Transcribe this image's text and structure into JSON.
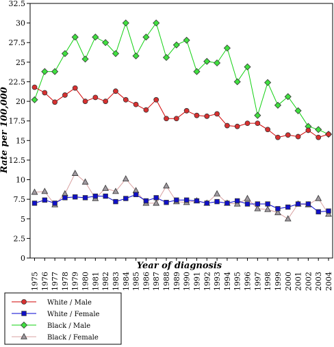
{
  "chart_data": {
    "type": "line",
    "xlabel": "Year of diagnosis",
    "ylabel": "Rate per 100,000",
    "ylim": [
      0,
      32.5
    ],
    "yticks": [
      "0",
      "2.5",
      "5",
      "7.5",
      "10",
      "12.5",
      "15",
      "17.5",
      "20",
      "22.5",
      "25",
      "27.5",
      "30",
      "32.5"
    ],
    "categories": [
      "1975",
      "1976",
      "1977",
      "1978",
      "1979",
      "1980",
      "1981",
      "1982",
      "1983",
      "1984",
      "1985",
      "1986",
      "1987",
      "1988",
      "1989",
      "1990",
      "1991",
      "1992",
      "1993",
      "1994",
      "1995",
      "1996",
      "1997",
      "1998",
      "1999",
      "2000",
      "2001",
      "2002",
      "2003",
      "2004"
    ],
    "legend_position": "bottom-left",
    "grid": false,
    "series": [
      {
        "name": "White / Male",
        "color": "#d00000",
        "fill": "#d83030",
        "marker": "circle",
        "values": [
          21.8,
          21.1,
          19.9,
          20.8,
          21.7,
          20.0,
          20.5,
          20.0,
          21.3,
          20.2,
          19.6,
          18.9,
          20.2,
          17.8,
          17.8,
          18.8,
          18.2,
          18.1,
          18.4,
          16.9,
          16.8,
          17.2,
          17.2,
          16.4,
          15.4,
          15.7,
          15.5,
          16.3,
          15.4,
          15.8
        ]
      },
      {
        "name": "White / Female",
        "color": "#0000d0",
        "fill": "#1010c8",
        "marker": "square",
        "values": [
          7.0,
          7.4,
          7.0,
          7.7,
          7.8,
          7.7,
          7.9,
          7.9,
          7.2,
          7.6,
          8.1,
          7.3,
          7.7,
          7.1,
          7.4,
          7.4,
          7.3,
          7.0,
          7.2,
          7.0,
          7.3,
          6.9,
          6.9,
          6.9,
          6.3,
          6.5,
          6.9,
          6.9,
          5.9,
          6.0
        ]
      },
      {
        "name": "Black / Male",
        "color": "#10d010",
        "fill": "#40e040",
        "marker": "diamond",
        "values": [
          20.2,
          23.8,
          23.8,
          26.1,
          28.2,
          25.4,
          28.2,
          27.5,
          26.1,
          30.0,
          25.8,
          28.2,
          30.0,
          25.6,
          27.2,
          27.8,
          23.8,
          25.1,
          24.9,
          26.8,
          22.5,
          24.4,
          18.2,
          22.4,
          19.5,
          20.6,
          18.8,
          16.8,
          16.4,
          15.8
        ]
      },
      {
        "name": "Black / Female",
        "color": "#d8a0a0",
        "fill": "#a09aa0",
        "marker": "triangle",
        "values": [
          8.4,
          8.5,
          6.8,
          8.2,
          10.8,
          9.7,
          7.6,
          8.9,
          8.5,
          10.1,
          8.6,
          7.0,
          7.0,
          9.2,
          7.2,
          7.1,
          7.3,
          7.0,
          8.2,
          7.0,
          6.9,
          7.6,
          6.3,
          6.2,
          5.8,
          5.0,
          6.9,
          6.8,
          7.6,
          5.6
        ]
      }
    ]
  }
}
